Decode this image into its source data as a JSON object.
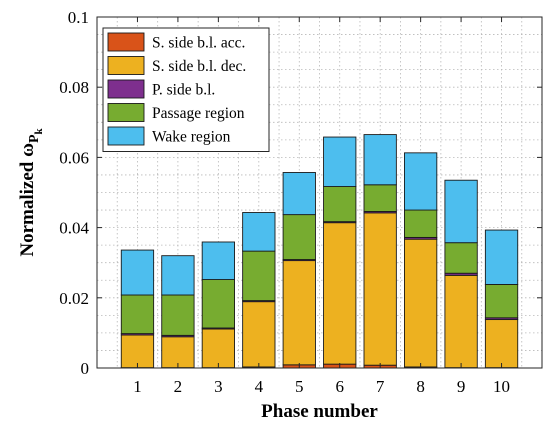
{
  "chart_data": {
    "type": "bar",
    "stacked": true,
    "xlabel": "Phase number",
    "ylabel": "Normalized ω",
    "ylabel_sub": "P",
    "ylabel_subsub": "k",
    "categories": [
      "1",
      "2",
      "3",
      "4",
      "5",
      "6",
      "7",
      "8",
      "9",
      "10"
    ],
    "ylim": [
      0,
      0.1
    ],
    "yticks": [
      0,
      0.02,
      0.04,
      0.06,
      0.08,
      0.1
    ],
    "ytick_labels": [
      "0",
      "0.02",
      "0.04",
      "0.06",
      "0.08",
      "0.1"
    ],
    "grid": true,
    "legend_position": "top-left",
    "series": [
      {
        "name": "S. side b.l. acc.",
        "color": "#d95319",
        "values": [
          0.0001,
          0.0001,
          0.0001,
          0.0003,
          0.0009,
          0.0011,
          0.0008,
          0.0003,
          0.0001,
          0.0001
        ]
      },
      {
        "name": "S. side b.l. dec.",
        "color": "#edb120",
        "values": [
          0.0093,
          0.0088,
          0.011,
          0.0186,
          0.0297,
          0.0403,
          0.0434,
          0.0364,
          0.0263,
          0.0137
        ]
      },
      {
        "name": "P. side b.l.",
        "color": "#7e2f8e",
        "values": [
          0.0004,
          0.0004,
          0.0003,
          0.0003,
          0.0003,
          0.0003,
          0.0004,
          0.0005,
          0.0006,
          0.0005
        ]
      },
      {
        "name": "Passage region",
        "color": "#77ac30",
        "values": [
          0.011,
          0.0115,
          0.0138,
          0.0141,
          0.0128,
          0.01,
          0.0076,
          0.0078,
          0.0087,
          0.0095
        ]
      },
      {
        "name": "Wake region",
        "color": "#4dbeee",
        "values": [
          0.0128,
          0.0112,
          0.0107,
          0.011,
          0.012,
          0.0141,
          0.0143,
          0.0163,
          0.0178,
          0.0155
        ]
      }
    ]
  }
}
